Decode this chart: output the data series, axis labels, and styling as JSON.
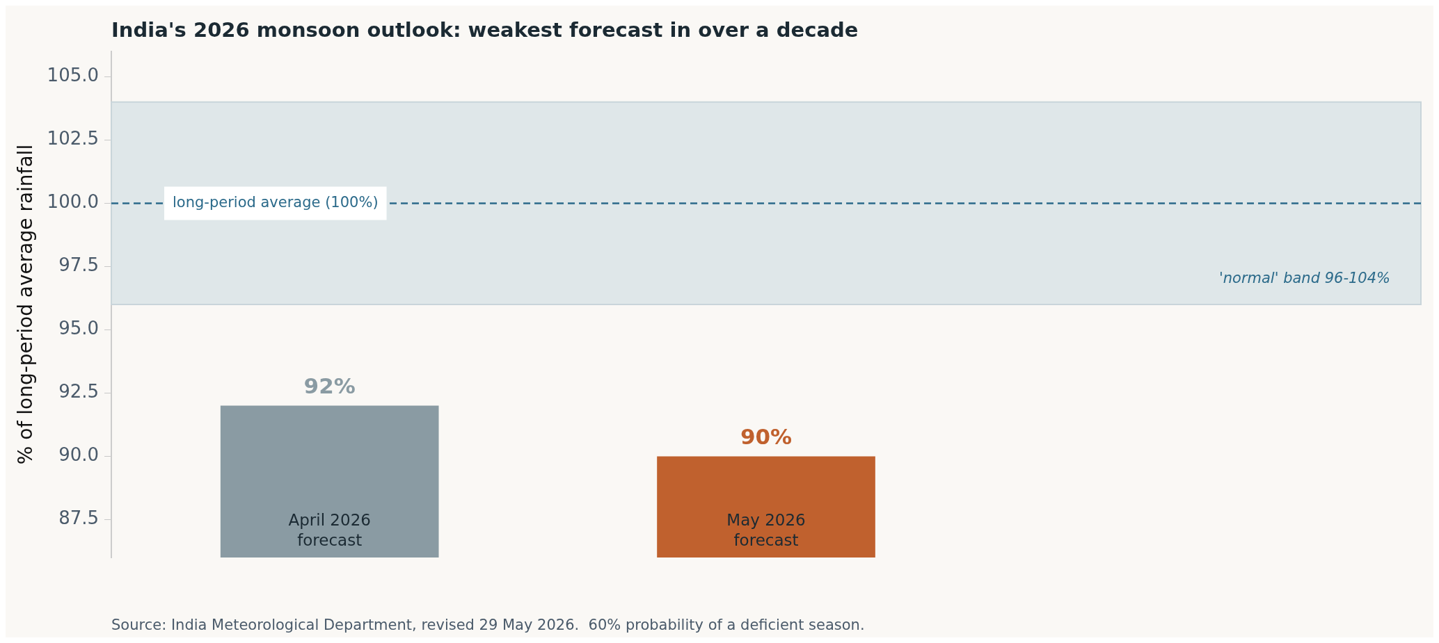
{
  "chart_data": {
    "type": "bar",
    "title": "India's 2026 monsoon outlook: weakest forecast in over a decade",
    "ylabel": "% of long-period average rainfall",
    "categories": [
      "April 2026 forecast",
      "May 2026 forecast",
      null
    ],
    "values": [
      92,
      90,
      null
    ],
    "colors": [
      "#8a9ba3",
      "#c0612e",
      "#c0612e"
    ],
    "value_labels": [
      "92%",
      "90%",
      null
    ],
    "ylim": [
      86,
      106
    ],
    "yticks": [
      {
        "value": 87.5,
        "label": "87.5"
      },
      {
        "value": 90,
        "label": "90.0"
      },
      {
        "value": 92.5,
        "label": "92.5"
      },
      {
        "value": 95,
        "label": "95.0"
      },
      {
        "value": 97.5,
        "label": "97.5"
      },
      {
        "value": 100,
        "label": "100.0"
      },
      {
        "value": 102.5,
        "label": "102.5"
      },
      {
        "value": 105,
        "label": "105.0"
      }
    ],
    "grid": false,
    "legend": false,
    "ref_lines": [
      {
        "axis": "y",
        "value": 100,
        "label": "long-period average (100%)",
        "color": "#2b6a8a",
        "line_style": "dashed"
      }
    ],
    "bands": [
      {
        "axis": "y",
        "from": 96,
        "to": 104,
        "label": "'normal' band 96-104%",
        "color": "#dfe7e9"
      }
    ],
    "annotations": [
      "Source: India Meteorological Department, revised 29 May 2026.  60% probability of a deficient season."
    ]
  }
}
